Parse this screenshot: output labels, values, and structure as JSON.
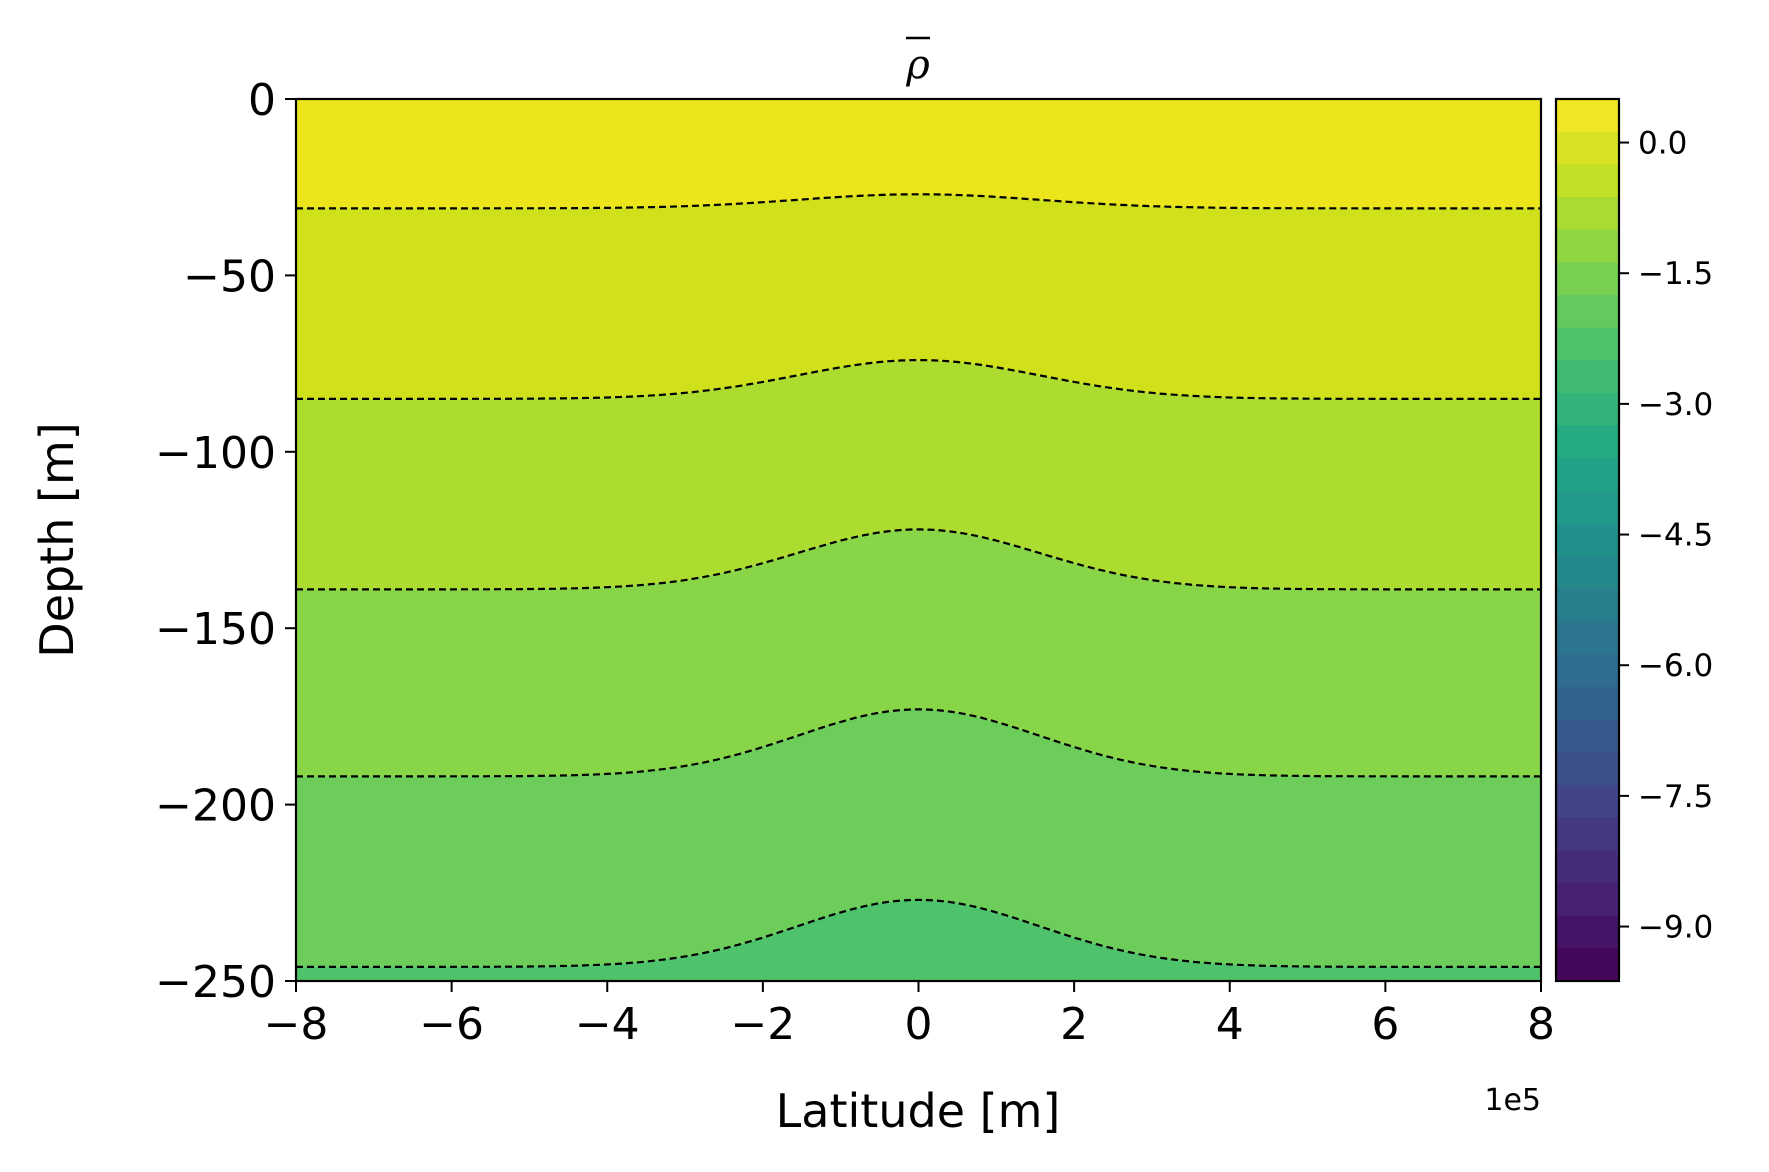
{
  "chart_data": {
    "type": "heatmap",
    "subtype": "filled-contour",
    "title": "ρ",
    "title_overline": true,
    "xlabel": "Latitude [m]",
    "ylabel": "Depth [m]",
    "x_offset_label": "1e5",
    "xlim": [
      -8,
      8
    ],
    "ylim": [
      -250,
      0
    ],
    "x_ticks": [
      -8,
      -6,
      -4,
      -2,
      0,
      2,
      4,
      6,
      8
    ],
    "x_tick_labels": [
      "−8",
      "−6",
      "−4",
      "−2",
      "0",
      "2",
      "4",
      "6",
      "8"
    ],
    "y_ticks": [
      0,
      -50,
      -100,
      -150,
      -200,
      -250
    ],
    "y_tick_labels": [
      "0",
      "−50",
      "−100",
      "−150",
      "−200",
      "−250"
    ],
    "colormap": "viridis_r",
    "colorbar": {
      "vmin": -9.625,
      "vmax": 0.5,
      "levels": 27,
      "ticks": [
        0.0,
        -1.5,
        -3.0,
        -4.5,
        -6.0,
        -7.5,
        -9.0
      ],
      "tick_labels": [
        "0.0",
        "−1.5",
        "−3.0",
        "−4.5",
        "−6.0",
        "−7.5",
        "−9.0"
      ]
    },
    "band_colors": [
      "#ece51b",
      "#d0e11c",
      "#addc30",
      "#89d548",
      "#6ccd5a",
      "#4ec36b"
    ],
    "contours": {
      "style": "dashed",
      "color": "#000000",
      "edge_depths": [
        -31,
        -85,
        -139,
        -192,
        -246
      ],
      "center_depths": [
        -27,
        -74,
        -122,
        -173,
        -227
      ]
    }
  }
}
